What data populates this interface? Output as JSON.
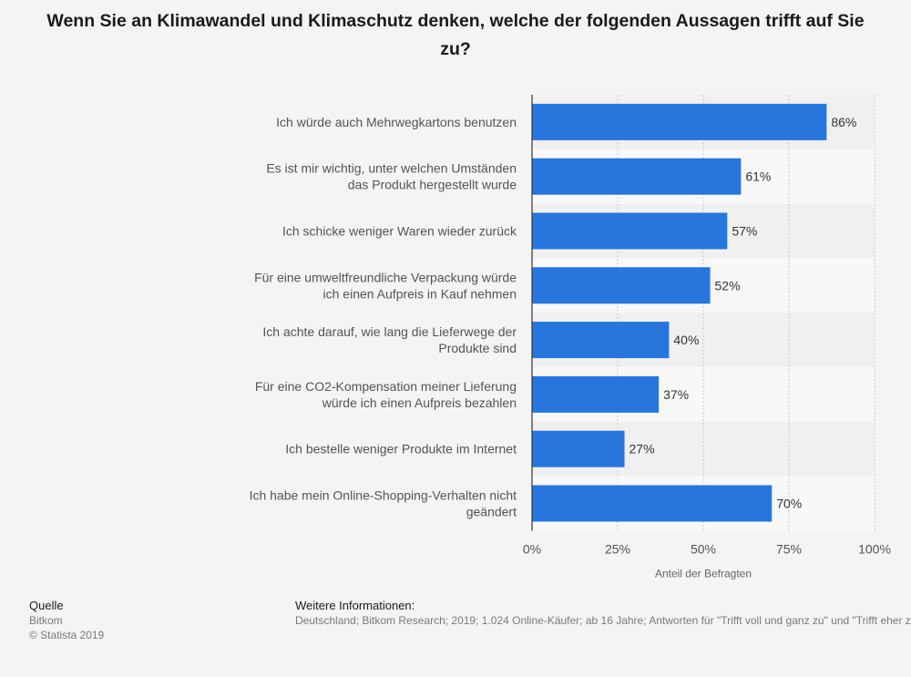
{
  "title": "Wenn Sie an Klimawandel und Klimaschutz denken, welche der folgenden Aussagen trifft auf Sie zu?",
  "chart_data": {
    "type": "bar",
    "orientation": "horizontal",
    "categories": [
      [
        "Ich würde auch Mehrwegkartons benutzen"
      ],
      [
        "Es ist mir wichtig, unter welchen Umständen",
        "das Produkt hergestellt wurde"
      ],
      [
        "Ich schicke weniger Waren wieder zurück"
      ],
      [
        "Für eine umweltfreundliche Verpackung würde",
        "ich einen Aufpreis in Kauf nehmen"
      ],
      [
        "Ich achte darauf, wie lang die Lieferwege der",
        "Produkte sind"
      ],
      [
        "Für eine CO2-Kompensation meiner Lieferung",
        "würde ich einen Aufpreis bezahlen"
      ],
      [
        "Ich bestelle weniger Produkte im Internet"
      ],
      [
        "Ich habe mein Online-Shopping-Verhalten nicht",
        "geändert"
      ]
    ],
    "values": [
      86,
      61,
      57,
      52,
      40,
      37,
      27,
      70
    ],
    "value_labels": [
      "86%",
      "61%",
      "57%",
      "52%",
      "40%",
      "37%",
      "27%",
      "70%"
    ],
    "xlim": [
      0,
      100
    ],
    "ticks": [
      0,
      25,
      50,
      75,
      100
    ],
    "tick_labels": [
      "0%",
      "25%",
      "50%",
      "75%",
      "100%"
    ],
    "xlabel": "Anteil der Befragten",
    "ylabel": "",
    "grid": true,
    "legend": "none",
    "bar_color": "#2876dd"
  },
  "footer": {
    "source_heading": "Quelle",
    "source": "Bitkom",
    "copyright": "© Statista 2019",
    "info_heading": "Weitere Informationen:",
    "info": "Deutschland; Bitkom Research; 2019; 1.024 Online-Käufer; ab 16 Jahre; Antworten für \"Trifft voll und ganz zu\" und \"Trifft eher zu\""
  }
}
